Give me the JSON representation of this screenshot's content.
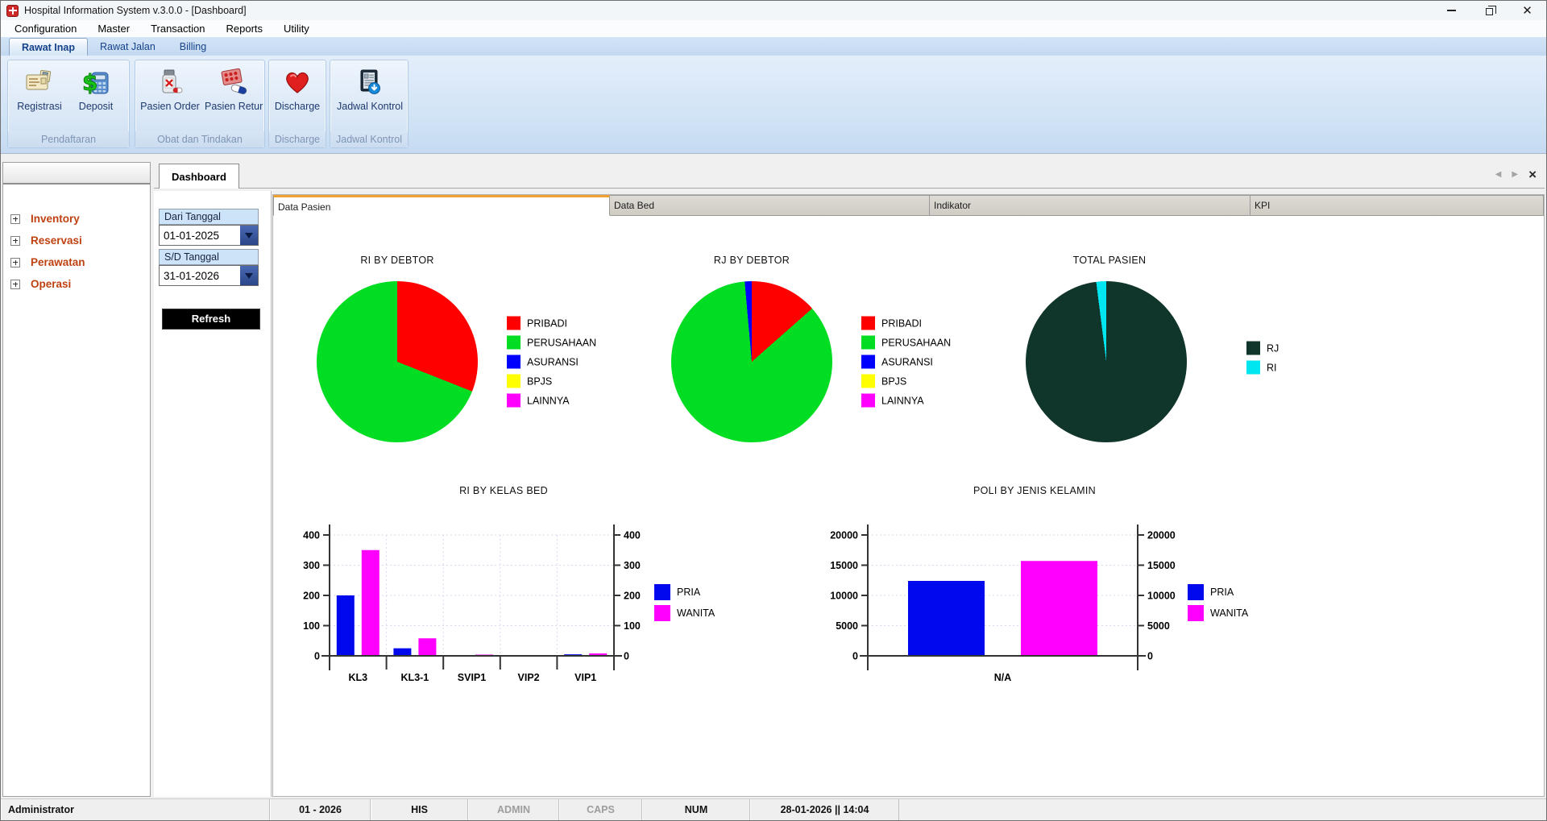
{
  "window": {
    "title": "Hospital Information System v.3.0.0 - [Dashboard]"
  },
  "menubar": {
    "items": [
      "Configuration",
      "Master",
      "Transaction",
      "Reports",
      "Utility"
    ]
  },
  "ribbon": {
    "tabs": [
      {
        "label": "Rawat Inap",
        "active": true
      },
      {
        "label": "Rawat Jalan",
        "active": false
      },
      {
        "label": "Billing",
        "active": false
      }
    ],
    "groups": [
      {
        "label": "Pendaftaran",
        "buttons": [
          {
            "label": "Registrasi",
            "icon": "registration-card-icon"
          },
          {
            "label": "Deposit",
            "icon": "deposit-calculator-icon"
          }
        ]
      },
      {
        "label": "Obat dan Tindakan",
        "buttons": [
          {
            "label": "Pasien Order",
            "icon": "medicine-bottle-icon"
          },
          {
            "label": "Pasien Retur",
            "icon": "pills-blister-icon"
          }
        ]
      },
      {
        "label": "Discharge",
        "buttons": [
          {
            "label": "Discharge",
            "icon": "heart-icon"
          }
        ]
      },
      {
        "label": "Jadwal Kontrol",
        "buttons": [
          {
            "label": "Jadwal Kontrol",
            "icon": "schedule-document-icon"
          }
        ]
      }
    ]
  },
  "sidebar": {
    "items": [
      {
        "label": "Inventory"
      },
      {
        "label": "Reservasi"
      },
      {
        "label": "Perawatan"
      },
      {
        "label": "Operasi"
      }
    ]
  },
  "document_tab": {
    "label": "Dashboard"
  },
  "filter": {
    "from_label": "Dari Tanggal",
    "from_value": "01-01-2025",
    "to_label": "S/D Tanggal",
    "to_value": "31-01-2026",
    "refresh_label": "Refresh"
  },
  "content_tabs": [
    "Data Pasien",
    "Data Bed",
    "Indikator",
    "KPI"
  ],
  "chart_data": [
    {
      "id": "ri_by_debtor",
      "type": "pie",
      "title": "RI BY DEBTOR",
      "labels": [
        "PRIBADI",
        "PERUSAHAAN",
        "ASURANSI",
        "BPJS",
        "LAINNYA"
      ],
      "values": [
        31,
        69,
        0,
        0,
        0
      ],
      "colors": [
        "#ff0000",
        "#00dd22",
        "#0000ff",
        "#ffff00",
        "#ff00ff"
      ],
      "legend_position": "right"
    },
    {
      "id": "rj_by_debtor",
      "type": "pie",
      "title": "RJ BY DEBTOR",
      "labels": [
        "PRIBADI",
        "PERUSAHAAN",
        "ASURANSI",
        "BPJS",
        "LAINNYA"
      ],
      "values": [
        13.5,
        85.1,
        1.4,
        0,
        0
      ],
      "colors": [
        "#ff0000",
        "#00dd22",
        "#0000ff",
        "#ffff00",
        "#ff00ff"
      ],
      "legend_position": "right"
    },
    {
      "id": "total_pasien",
      "type": "pie",
      "title": "TOTAL PASIEN",
      "labels": [
        "RJ",
        "RI"
      ],
      "values": [
        98,
        2
      ],
      "colors": [
        "#10352a",
        "#00e6f0"
      ],
      "legend_position": "right"
    },
    {
      "id": "ri_by_kelas_bed",
      "type": "bar",
      "title": "RI BY KELAS BED",
      "categories": [
        "KL3",
        "KL3-1",
        "SVIP1",
        "VIP2",
        "VIP1"
      ],
      "series": [
        {
          "name": "PRIA",
          "color": "#0008ee",
          "values": [
            200,
            25,
            0,
            0,
            5
          ]
        },
        {
          "name": "WANITA",
          "color": "#ff00ff",
          "values": [
            350,
            58,
            4,
            0,
            8
          ]
        }
      ],
      "ylim": [
        0,
        400
      ],
      "ytick_step": 100,
      "grid": true,
      "legend_position": "right"
    },
    {
      "id": "poli_by_jenis_kelamin",
      "type": "bar",
      "title": "POLI BY JENIS KELAMIN",
      "categories": [
        "N/A"
      ],
      "series": [
        {
          "name": "PRIA",
          "color": "#0008ee",
          "values": [
            12400
          ]
        },
        {
          "name": "WANITA",
          "color": "#ff00ff",
          "values": [
            15700
          ]
        }
      ],
      "ylim": [
        0,
        20000
      ],
      "ytick_step": 5000,
      "grid": true,
      "legend_position": "right"
    }
  ],
  "statusbar": {
    "user": "Administrator",
    "period": "01 - 2026",
    "app": "HIS",
    "admin": "ADMIN",
    "caps": "CAPS",
    "num": "NUM",
    "datetime": "28-01-2026 || 14:04"
  }
}
